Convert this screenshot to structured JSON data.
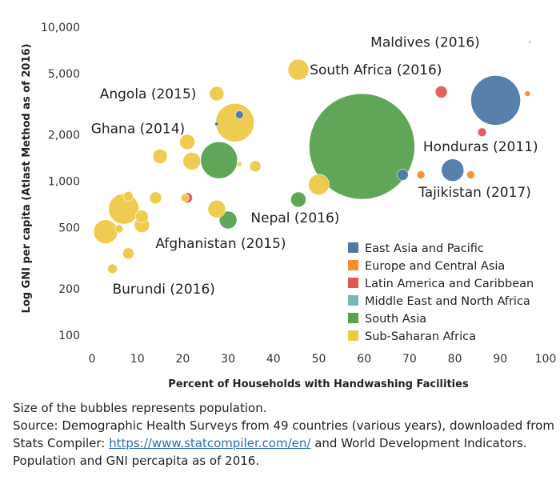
{
  "chart_data": {
    "type": "scatter",
    "xlabel": "Percent of Households with Handwashing Facilities",
    "ylabel": "Log GNI per capita (Atlast Method as of 2016)",
    "xlim": [
      0,
      100
    ],
    "ylim": [
      85,
      12000
    ],
    "y_scale": "log",
    "x_ticks": [
      0,
      10,
      20,
      30,
      40,
      50,
      60,
      70,
      80,
      90,
      100
    ],
    "y_ticks": [
      {
        "value": 100,
        "label": "100"
      },
      {
        "value": 200,
        "label": "200"
      },
      {
        "value": 500,
        "label": "500"
      },
      {
        "value": 1000,
        "label": "1,000"
      },
      {
        "value": 2000,
        "label": "2,000"
      },
      {
        "value": 5000,
        "label": "5,000"
      },
      {
        "value": 10000,
        "label": "10,000"
      }
    ],
    "grid": false,
    "legend_position": "bottom-right",
    "bubble_size_encoding": "population",
    "series": [
      {
        "name": "East Asia and Pacific",
        "color": "#4e79a7"
      },
      {
        "name": "Europe and Central Asia",
        "color": "#f28e2b"
      },
      {
        "name": "Latin America and Caribbean",
        "color": "#e15759"
      },
      {
        "name": "Middle East and North Africa",
        "color": "#76b7b2"
      },
      {
        "name": "South Asia",
        "color": "#59a14f"
      },
      {
        "name": "Sub-Saharan Africa",
        "color": "#edc948"
      }
    ],
    "points": [
      {
        "x": 59.5,
        "y": 1680,
        "r": 66,
        "s": 4
      },
      {
        "x": 89,
        "y": 3350,
        "r": 31,
        "s": 0
      },
      {
        "x": 31.5,
        "y": 2400,
        "r": 24,
        "s": 5
      },
      {
        "x": 28,
        "y": 1370,
        "r": 23,
        "s": 4
      },
      {
        "x": 7,
        "y": 660,
        "r": 19,
        "s": 5
      },
      {
        "x": 3,
        "y": 470,
        "r": 15,
        "s": 5
      },
      {
        "x": 79.5,
        "y": 1180,
        "r": 14,
        "s": 0
      },
      {
        "x": 50,
        "y": 950,
        "r": 13,
        "s": 5
      },
      {
        "x": 45.5,
        "y": 5300,
        "r": 13,
        "s": 5
      },
      {
        "x": 22,
        "y": 1350,
        "r": 11,
        "s": 5
      },
      {
        "x": 30,
        "y": 560,
        "r": 11,
        "s": 4
      },
      {
        "x": 27.5,
        "y": 660,
        "r": 11,
        "s": 5
      },
      {
        "x": 21,
        "y": 1800,
        "r": 9.5,
        "s": 5
      },
      {
        "x": 11,
        "y": 520,
        "r": 9.5,
        "s": 5
      },
      {
        "x": 27.5,
        "y": 3700,
        "r": 9,
        "s": 5
      },
      {
        "x": 15,
        "y": 1450,
        "r": 9,
        "s": 5
      },
      {
        "x": 45.5,
        "y": 760,
        "r": 9.5,
        "s": 4
      },
      {
        "x": 11,
        "y": 590,
        "r": 8,
        "s": 5
      },
      {
        "x": 14,
        "y": 780,
        "r": 7.5,
        "s": 5
      },
      {
        "x": 36,
        "y": 1250,
        "r": 7,
        "s": 5
      },
      {
        "x": 8,
        "y": 340,
        "r": 7,
        "s": 5
      },
      {
        "x": 77,
        "y": 3800,
        "r": 7.5,
        "s": 2
      },
      {
        "x": 21,
        "y": 780,
        "r": 6.5,
        "s": 2
      },
      {
        "x": 68.5,
        "y": 1100,
        "r": 7,
        "s": 0
      },
      {
        "x": 8,
        "y": 800,
        "r": 6,
        "s": 5
      },
      {
        "x": 4.5,
        "y": 270,
        "r": 6,
        "s": 5
      },
      {
        "x": 86,
        "y": 2080,
        "r": 5.5,
        "s": 2
      },
      {
        "x": 72.5,
        "y": 1100,
        "r": 5,
        "s": 1
      },
      {
        "x": 83.5,
        "y": 1100,
        "r": 5,
        "s": 1
      },
      {
        "x": 20.5,
        "y": 780,
        "r": 5,
        "s": 5
      },
      {
        "x": 32.5,
        "y": 2700,
        "r": 5,
        "s": 0
      },
      {
        "x": 6,
        "y": 490,
        "r": 5,
        "s": 5
      },
      {
        "x": 96,
        "y": 3700,
        "r": 3.5,
        "s": 1
      },
      {
        "x": 32.5,
        "y": 1290,
        "r": 3,
        "s": 5
      },
      {
        "x": 27.5,
        "y": 2350,
        "r": 2.5,
        "s": 0
      },
      {
        "x": 96.5,
        "y": 8000,
        "r": 1.5,
        "s": 3
      }
    ],
    "annotations": [
      {
        "text": "Maldives (2016)",
        "x": 85.5,
        "y": 8000,
        "anchor": "end"
      },
      {
        "text": "South Africa (2016)",
        "x": 48,
        "y": 5300,
        "anchor": "start"
      },
      {
        "text": "Angola (2015)",
        "x": 23,
        "y": 3700,
        "anchor": "end"
      },
      {
        "text": "Ghana (2014)",
        "x": 20.5,
        "y": 2200,
        "anchor": "end"
      },
      {
        "text": "Honduras (2011)",
        "x": 73,
        "y": 1680,
        "anchor": "start"
      },
      {
        "text": "Tajikistan (2017)",
        "x": 72,
        "y": 850,
        "anchor": "start"
      },
      {
        "text": "Nepal (2016)",
        "x": 35,
        "y": 580,
        "anchor": "start"
      },
      {
        "text": "Afghanistan (2015)",
        "x": 14,
        "y": 395,
        "anchor": "start"
      },
      {
        "text": "Burundi (2016)",
        "x": 4.5,
        "y": 200,
        "anchor": "start"
      }
    ]
  },
  "caption": {
    "line1": "Size of the bubbles represents population.",
    "source_prefix": "Source: Demographic Health Surveys from 49 countries (various years), downloaded from Stats Compiler: ",
    "source_link": "https://www.statcompiler.com/en/",
    "source_suffix": " and World Development Indicators. Population and GNI percapita as of 2016."
  }
}
